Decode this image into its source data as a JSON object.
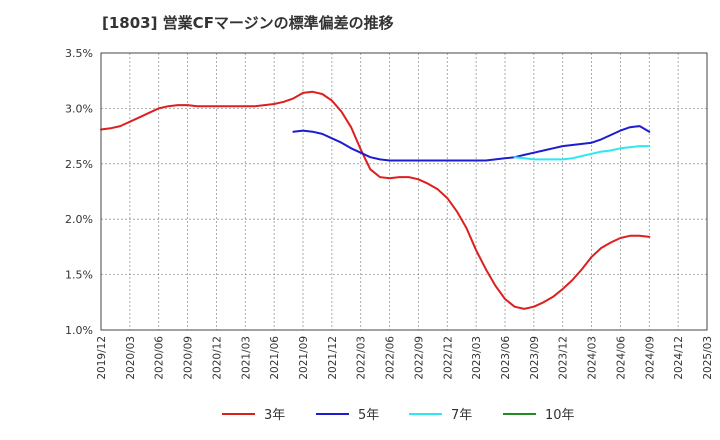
{
  "chart_data": {
    "type": "line",
    "title": "[1803]  営業CFマージンの標準偏差の推移",
    "xlabel": "",
    "ylabel": "",
    "ylim": [
      1.0,
      3.5
    ],
    "y_ticks": [
      "1.0%",
      "1.5%",
      "2.0%",
      "2.5%",
      "3.0%",
      "3.5%"
    ],
    "x_ticks": [
      "2019/12",
      "2020/03",
      "2020/06",
      "2020/09",
      "2020/12",
      "2021/03",
      "2021/06",
      "2021/09",
      "2021/12",
      "2022/03",
      "2022/06",
      "2022/09",
      "2022/12",
      "2023/03",
      "2023/06",
      "2023/09",
      "2023/12",
      "2024/03",
      "2024/06",
      "2024/09",
      "2024/12",
      "2025/03"
    ],
    "grid": true,
    "legend_placement": "bottom",
    "series": [
      {
        "name": "3年",
        "color": "#dd1f1f",
        "x": [
          "2019/12",
          "2020/01",
          "2020/02",
          "2020/03",
          "2020/04",
          "2020/05",
          "2020/06",
          "2020/07",
          "2020/08",
          "2020/09",
          "2020/10",
          "2020/11",
          "2020/12",
          "2021/01",
          "2021/02",
          "2021/03",
          "2021/04",
          "2021/05",
          "2021/06",
          "2021/07",
          "2021/08",
          "2021/09",
          "2021/10",
          "2021/11",
          "2021/12",
          "2022/01",
          "2022/02",
          "2022/03",
          "2022/04",
          "2022/05",
          "2022/06",
          "2022/07",
          "2022/08",
          "2022/09",
          "2022/10",
          "2022/11",
          "2022/12",
          "2023/01",
          "2023/02",
          "2023/03",
          "2023/04",
          "2023/05",
          "2023/06",
          "2023/07",
          "2023/08",
          "2023/09",
          "2023/10",
          "2023/11",
          "2023/12",
          "2024/01",
          "2024/02",
          "2024/03",
          "2024/04",
          "2024/05",
          "2024/06",
          "2024/07",
          "2024/08",
          "2024/09"
        ],
        "values": [
          2.81,
          2.82,
          2.84,
          2.88,
          2.92,
          2.96,
          3.0,
          3.02,
          3.03,
          3.03,
          3.02,
          3.02,
          3.02,
          3.02,
          3.02,
          3.02,
          3.02,
          3.03,
          3.04,
          3.06,
          3.09,
          3.14,
          3.15,
          3.13,
          3.07,
          2.97,
          2.83,
          2.63,
          2.45,
          2.38,
          2.37,
          2.38,
          2.38,
          2.36,
          2.32,
          2.27,
          2.19,
          2.07,
          1.92,
          1.72,
          1.55,
          1.4,
          1.28,
          1.21,
          1.19,
          1.21,
          1.25,
          1.3,
          1.37,
          1.45,
          1.55,
          1.66,
          1.74,
          1.79,
          1.83,
          1.85,
          1.85,
          1.84
        ]
      },
      {
        "name": "5年",
        "color": "#1d1dcf",
        "x": [
          "2021/08",
          "2021/09",
          "2021/10",
          "2021/11",
          "2021/12",
          "2022/01",
          "2022/02",
          "2022/03",
          "2022/04",
          "2022/05",
          "2022/06",
          "2022/07",
          "2022/08",
          "2022/09",
          "2022/10",
          "2022/11",
          "2022/12",
          "2023/01",
          "2023/02",
          "2023/03",
          "2023/04",
          "2023/05",
          "2023/06",
          "2023/07",
          "2023/08",
          "2023/09",
          "2023/10",
          "2023/11",
          "2023/12",
          "2024/01",
          "2024/02",
          "2024/03",
          "2024/04",
          "2024/05",
          "2024/06",
          "2024/07",
          "2024/08",
          "2024/09"
        ],
        "values": [
          2.79,
          2.8,
          2.79,
          2.77,
          2.73,
          2.69,
          2.64,
          2.6,
          2.56,
          2.54,
          2.53,
          2.53,
          2.53,
          2.53,
          2.53,
          2.53,
          2.53,
          2.53,
          2.53,
          2.53,
          2.53,
          2.54,
          2.55,
          2.56,
          2.58,
          2.6,
          2.62,
          2.64,
          2.66,
          2.67,
          2.68,
          2.69,
          2.72,
          2.76,
          2.8,
          2.83,
          2.84,
          2.79
        ]
      },
      {
        "name": "7年",
        "color": "#2ee8f0",
        "x": [
          "2023/07",
          "2023/08",
          "2023/09",
          "2023/10",
          "2023/11",
          "2023/12",
          "2024/01",
          "2024/02",
          "2024/03",
          "2024/04",
          "2024/05",
          "2024/06",
          "2024/07",
          "2024/08",
          "2024/09"
        ],
        "values": [
          2.56,
          2.55,
          2.54,
          2.54,
          2.54,
          2.54,
          2.55,
          2.57,
          2.59,
          2.61,
          2.62,
          2.64,
          2.65,
          2.66,
          2.66
        ]
      },
      {
        "name": "10年",
        "color": "#228b22",
        "x": [],
        "values": []
      }
    ]
  }
}
